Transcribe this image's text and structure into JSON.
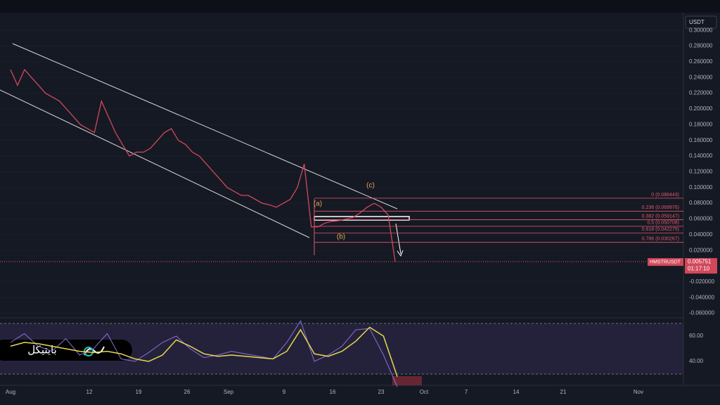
{
  "toolbar": {
    "currency": "USDT"
  },
  "chart_data": [
    {
      "type": "line",
      "symbol": "HMSTRUSDT",
      "last_price": 0.005751,
      "countdown": "01:17:10",
      "color": "#d1485a",
      "values": [
        0.25,
        0.23,
        0.25,
        0.24,
        0.23,
        0.22,
        0.215,
        0.21,
        0.2,
        0.19,
        0.18,
        0.175,
        0.17,
        0.21,
        0.19,
        0.17,
        0.155,
        0.14,
        0.145,
        0.145,
        0.15,
        0.16,
        0.17,
        0.175,
        0.16,
        0.155,
        0.145,
        0.14,
        0.13,
        0.12,
        0.11,
        0.1,
        0.095,
        0.09,
        0.09,
        0.085,
        0.08,
        0.078,
        0.075,
        0.08,
        0.085,
        0.1,
        0.13,
        0.05,
        0.05,
        0.055,
        0.057,
        0.058,
        0.06,
        0.062,
        0.068,
        0.075,
        0.08,
        0.075,
        0.065,
        0.0057
      ],
      "ylim": [
        -0.0657,
        0.3225
      ],
      "yticks": [
        {
          "value": -0.06,
          "label": "-0.060000"
        },
        {
          "value": -0.04,
          "label": "-0.040000"
        },
        {
          "value": -0.02,
          "label": "-0.020000"
        },
        {
          "value": 0.02,
          "label": "0.020000"
        },
        {
          "value": 0.04,
          "label": "0.040000"
        },
        {
          "value": 0.06,
          "label": "0.060000"
        },
        {
          "value": 0.08,
          "label": "0.080000"
        },
        {
          "value": 0.1,
          "label": "0.100000"
        },
        {
          "value": 0.12,
          "label": "0.120000"
        },
        {
          "value": 0.14,
          "label": "0.140000"
        },
        {
          "value": 0.16,
          "label": "0.160000"
        },
        {
          "value": 0.18,
          "label": "0.180000"
        },
        {
          "value": 0.2,
          "label": "0.200000"
        },
        {
          "value": 0.22,
          "label": "0.220000"
        },
        {
          "value": 0.24,
          "label": "0.240000"
        },
        {
          "value": 0.26,
          "label": "0.260000"
        },
        {
          "value": 0.28,
          "label": "0.280000"
        },
        {
          "value": 0.3,
          "label": "0.300000"
        }
      ],
      "fib_levels": [
        {
          "label": "0 (0.086443)",
          "value": 0.086443
        },
        {
          "label": "0.236 (0.069976)",
          "value": 0.069976
        },
        {
          "label": "0.382 (0.059147)",
          "value": 0.059147
        },
        {
          "label": "0.5 (0.050708)",
          "value": 0.050708
        },
        {
          "label": "0.618 (0.042275)",
          "value": 0.042275
        },
        {
          "label": "0.786 (0.030267)",
          "value": 0.030267
        }
      ],
      "annotations": [
        "(a)",
        "(b)",
        "(c)"
      ]
    },
    {
      "type": "line",
      "series": [
        {
          "color": "#8a6fd8",
          "values": [
            55,
            62,
            52,
            48,
            58,
            45,
            50,
            62,
            42,
            40,
            47,
            55,
            60,
            50,
            43,
            45,
            48,
            46,
            44,
            42,
            55,
            72,
            40,
            45,
            52,
            65,
            66,
            45,
            20
          ]
        },
        {
          "color": "#e6d84e",
          "values": [
            52,
            55,
            54,
            52,
            50,
            48,
            47,
            48,
            46,
            42,
            40,
            45,
            57,
            52,
            46,
            44,
            45,
            44,
            43,
            42,
            48,
            65,
            46,
            44,
            48,
            56,
            67,
            60,
            28
          ]
        }
      ],
      "ylim": [
        21.1,
        72.8
      ],
      "yticks": [
        {
          "value": 40,
          "label": "40.00"
        },
        {
          "value": 60,
          "label": "60.00"
        }
      ]
    }
  ],
  "x_axis": [
    "Aug",
    "12",
    "19",
    "26",
    "Sep",
    "9",
    "16",
    "23",
    "Oct",
    "7",
    "14",
    "21",
    "Nov"
  ],
  "watermark": "بایتیکل"
}
